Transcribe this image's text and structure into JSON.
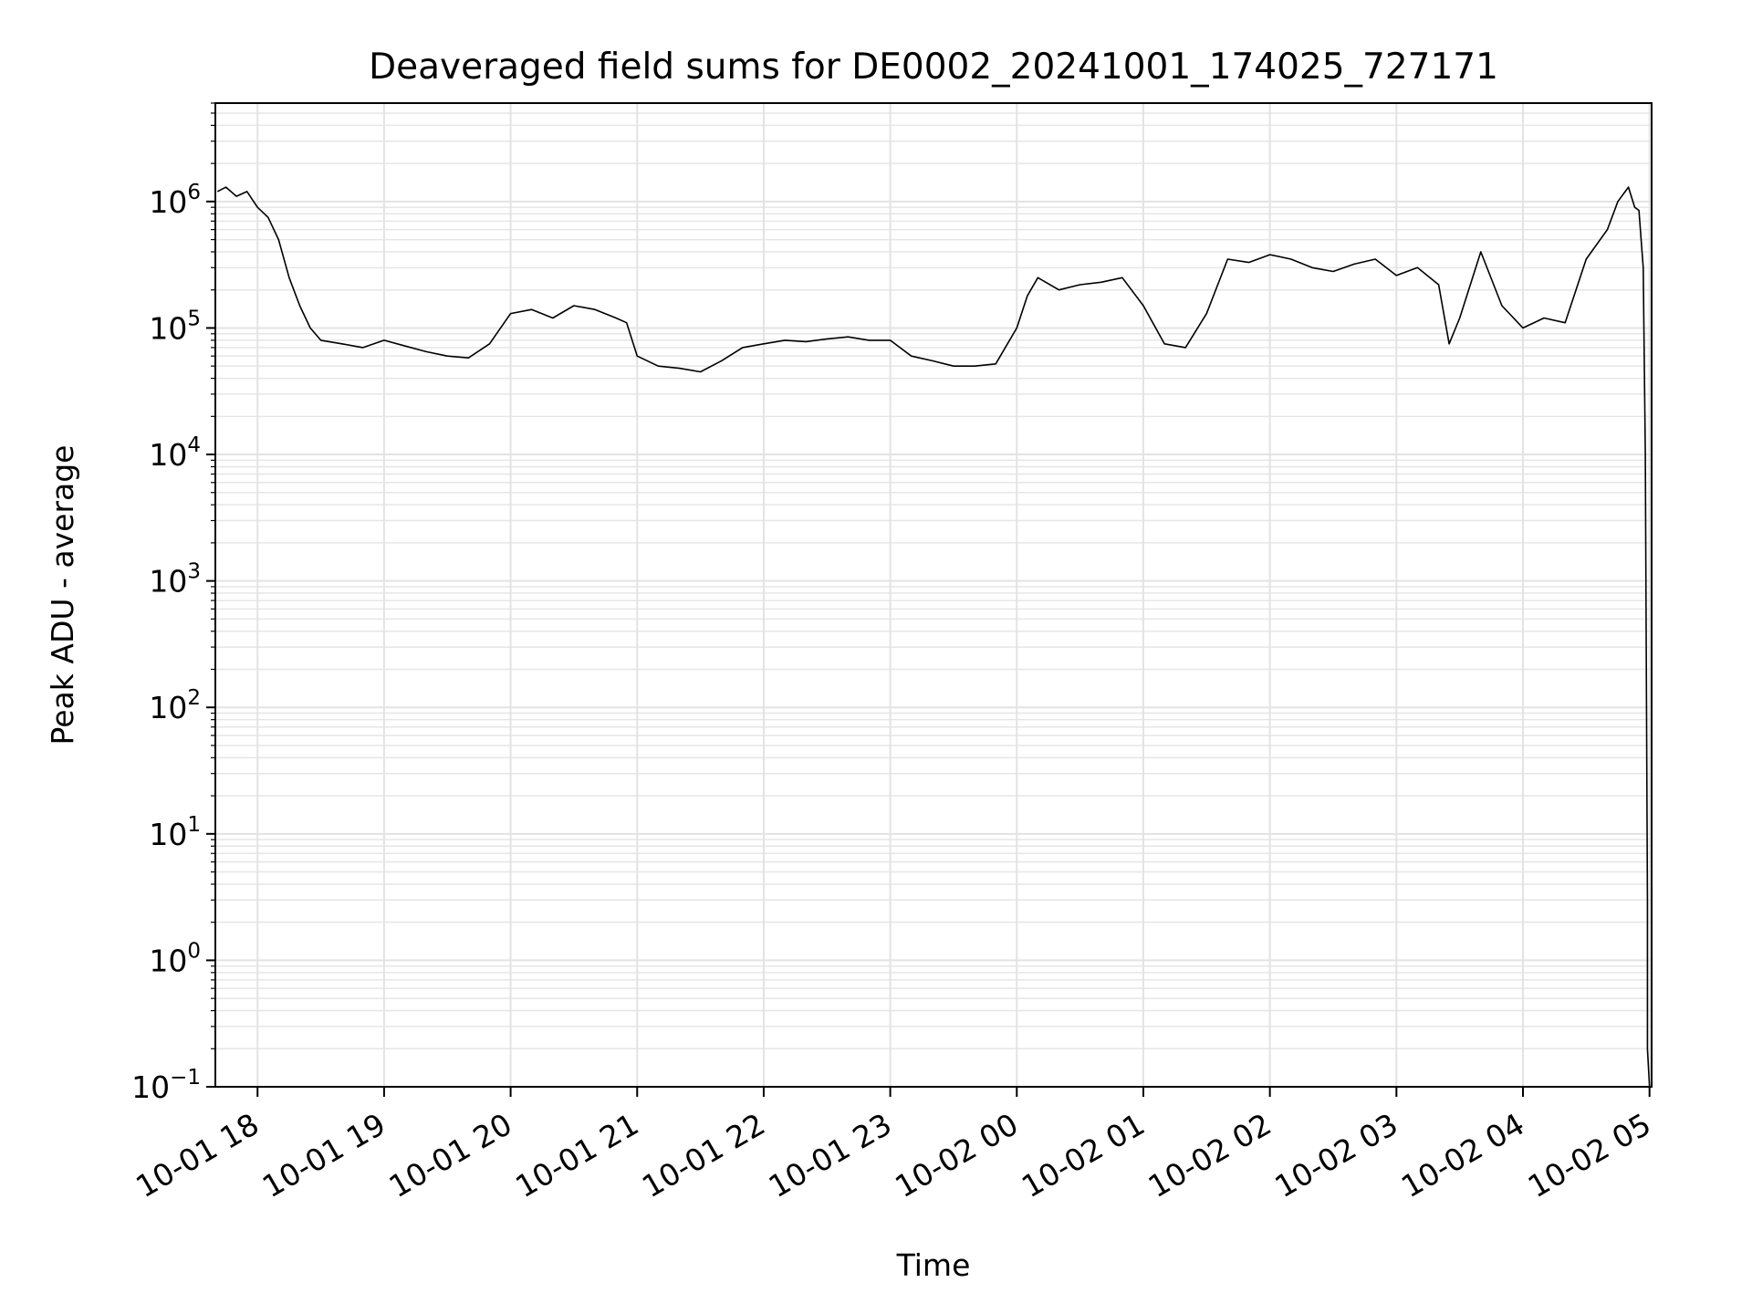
{
  "chart_data": {
    "type": "line",
    "title": "Deaveraged field sums for DE0002_20241001_174025_727171",
    "xlabel": "Time",
    "ylabel": "Peak ADU - average",
    "yscale": "log",
    "grid": true,
    "line_color": "#000000",
    "xlim": [
      "2024-10-01 17:40",
      "2024-10-02 05:01"
    ],
    "ylim": [
      0.1,
      6000000
    ],
    "x_ticks": [
      "10-01 18",
      "10-01 19",
      "10-01 20",
      "10-01 21",
      "10-01 22",
      "10-01 23",
      "10-02 00",
      "10-02 01",
      "10-02 02",
      "10-02 03",
      "10-02 04",
      "10-02 05"
    ],
    "y_ticks": [
      {
        "base": "10",
        "exp": "−1"
      },
      {
        "base": "10",
        "exp": "0"
      },
      {
        "base": "10",
        "exp": "1"
      },
      {
        "base": "10",
        "exp": "2"
      },
      {
        "base": "10",
        "exp": "3"
      },
      {
        "base": "10",
        "exp": "4"
      },
      {
        "base": "10",
        "exp": "5"
      },
      {
        "base": "10",
        "exp": "6"
      }
    ],
    "series": [
      {
        "x": [
          "2024-10-01 17:41",
          "2024-10-01 17:45",
          "2024-10-01 17:50",
          "2024-10-01 17:55",
          "2024-10-01 18:00",
          "2024-10-01 18:05",
          "2024-10-01 18:10",
          "2024-10-01 18:15",
          "2024-10-01 18:20",
          "2024-10-01 18:25",
          "2024-10-01 18:30",
          "2024-10-01 18:40",
          "2024-10-01 18:50",
          "2024-10-01 19:00",
          "2024-10-01 19:10",
          "2024-10-01 19:20",
          "2024-10-01 19:30",
          "2024-10-01 19:40",
          "2024-10-01 19:50",
          "2024-10-01 20:00",
          "2024-10-01 20:10",
          "2024-10-01 20:20",
          "2024-10-01 20:30",
          "2024-10-01 20:40",
          "2024-10-01 20:50",
          "2024-10-01 20:55",
          "2024-10-01 21:00",
          "2024-10-01 21:10",
          "2024-10-01 21:20",
          "2024-10-01 21:30",
          "2024-10-01 21:40",
          "2024-10-01 21:50",
          "2024-10-01 22:00",
          "2024-10-01 22:10",
          "2024-10-01 22:20",
          "2024-10-01 22:30",
          "2024-10-01 22:40",
          "2024-10-01 22:50",
          "2024-10-01 23:00",
          "2024-10-01 23:10",
          "2024-10-01 23:20",
          "2024-10-01 23:30",
          "2024-10-01 23:40",
          "2024-10-01 23:50",
          "2024-10-02 00:00",
          "2024-10-02 00:05",
          "2024-10-02 00:10",
          "2024-10-02 00:20",
          "2024-10-02 00:30",
          "2024-10-02 00:40",
          "2024-10-02 00:50",
          "2024-10-02 01:00",
          "2024-10-02 01:10",
          "2024-10-02 01:20",
          "2024-10-02 01:30",
          "2024-10-02 01:40",
          "2024-10-02 01:50",
          "2024-10-02 02:00",
          "2024-10-02 02:10",
          "2024-10-02 02:20",
          "2024-10-02 02:30",
          "2024-10-02 02:40",
          "2024-10-02 02:50",
          "2024-10-02 03:00",
          "2024-10-02 03:10",
          "2024-10-02 03:20",
          "2024-10-02 03:25",
          "2024-10-02 03:30",
          "2024-10-02 03:40",
          "2024-10-02 03:50",
          "2024-10-02 04:00",
          "2024-10-02 04:10",
          "2024-10-02 04:20",
          "2024-10-02 04:30",
          "2024-10-02 04:40",
          "2024-10-02 04:45",
          "2024-10-02 04:50",
          "2024-10-02 04:53",
          "2024-10-02 04:55",
          "2024-10-02 04:57",
          "2024-10-02 04:58",
          "2024-10-02 04:59",
          "2024-10-02 04:59",
          "2024-10-02 05:00"
        ],
        "values": [
          1200000,
          1300000,
          1100000,
          1200000,
          900000,
          750000,
          500000,
          250000,
          150000,
          100000,
          80000,
          75000,
          70000,
          80000,
          72000,
          65000,
          60000,
          58000,
          75000,
          130000,
          140000,
          120000,
          150000,
          140000,
          120000,
          110000,
          60000,
          50000,
          48000,
          45000,
          55000,
          70000,
          75000,
          80000,
          78000,
          82000,
          85000,
          80000,
          80000,
          60000,
          55000,
          50000,
          50000,
          52000,
          100000,
          180000,
          250000,
          200000,
          220000,
          230000,
          250000,
          150000,
          75000,
          70000,
          130000,
          350000,
          330000,
          380000,
          350000,
          300000,
          280000,
          320000,
          350000,
          260000,
          300000,
          220000,
          75000,
          120000,
          400000,
          150000,
          100000,
          120000,
          110000,
          350000,
          600000,
          1000000,
          1300000,
          900000,
          850000,
          300000,
          10000,
          3,
          0.2,
          0.1
        ]
      }
    ]
  }
}
